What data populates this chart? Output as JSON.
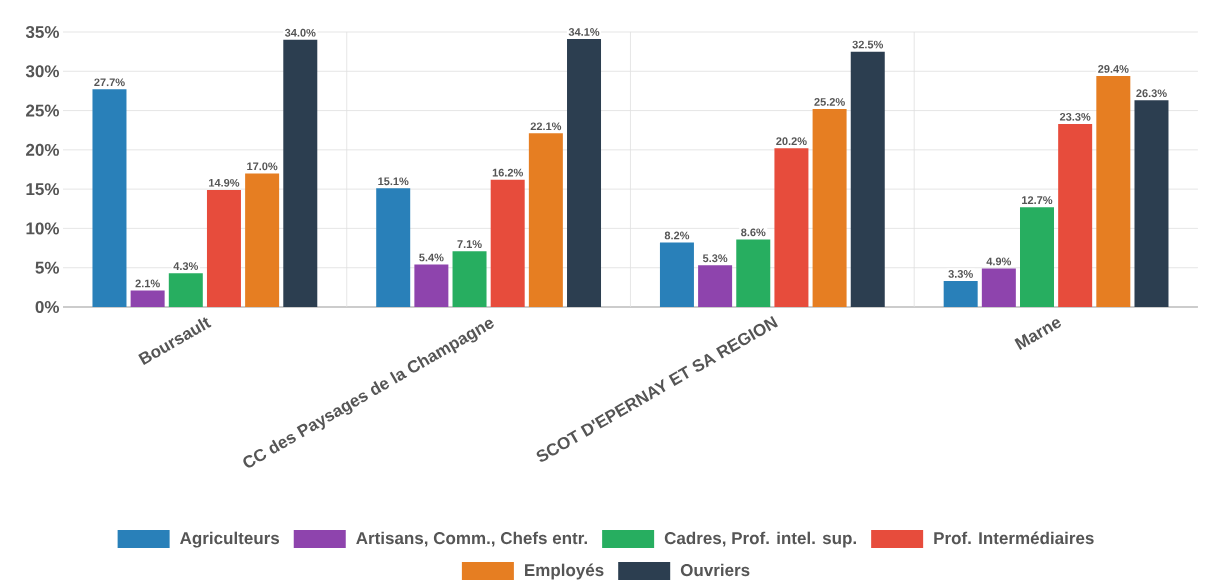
{
  "chart_data": {
    "type": "bar",
    "categories": [
      "Boursault",
      "CC des Paysages de la Champagne",
      "SCOT D'EPERNAY ET SA REGION",
      "Marne"
    ],
    "series": [
      {
        "name": "Agriculteurs",
        "color": "#2980b9",
        "values": [
          27.7,
          15.1,
          8.2,
          3.3
        ],
        "value_labels": [
          "27.7%",
          "15.1%",
          "8.2%",
          "3.3%"
        ]
      },
      {
        "name": "Artisans, Comm., Chefs entr.",
        "color": "#8e44ad",
        "values": [
          2.1,
          5.4,
          5.3,
          4.9
        ],
        "value_labels": [
          "2.1%",
          "5.4%",
          "5.3%",
          "4.9%"
        ]
      },
      {
        "name": "Cadres, Prof. intel. sup.",
        "color": "#27ae60",
        "values": [
          4.3,
          7.1,
          8.6,
          12.7
        ],
        "value_labels": [
          "4.3%",
          "7.1%",
          "8.6%",
          "12.7%"
        ]
      },
      {
        "name": "Prof. Intermédiaires",
        "color": "#e74c3c",
        "values": [
          14.9,
          16.2,
          20.2,
          23.3
        ],
        "value_labels": [
          "14.9%",
          "16.2%",
          "20.2%",
          "23.3%"
        ]
      },
      {
        "name": "Employés",
        "color": "#e67e22",
        "values": [
          17.0,
          22.1,
          25.2,
          29.4
        ],
        "value_labels": [
          "17.0%",
          "22.1%",
          "25.2%",
          "29.4%"
        ]
      },
      {
        "name": "Ouvriers",
        "color": "#2c3e50",
        "values": [
          34.0,
          34.1,
          32.5,
          26.3
        ],
        "value_labels": [
          "34.0%",
          "34.1%",
          "32.5%",
          "26.3%"
        ]
      }
    ],
    "ylim": [
      0,
      35
    ],
    "yticks": [
      {
        "value": 0,
        "label": "0%"
      },
      {
        "value": 5,
        "label": "5%"
      },
      {
        "value": 10,
        "label": "10%"
      },
      {
        "value": 15,
        "label": "15%"
      },
      {
        "value": 20,
        "label": "20%"
      },
      {
        "value": 25,
        "label": "25%"
      },
      {
        "value": 30,
        "label": "30%"
      },
      {
        "value": 35,
        "label": "35%"
      }
    ],
    "grid": true,
    "legend": "bottom"
  }
}
